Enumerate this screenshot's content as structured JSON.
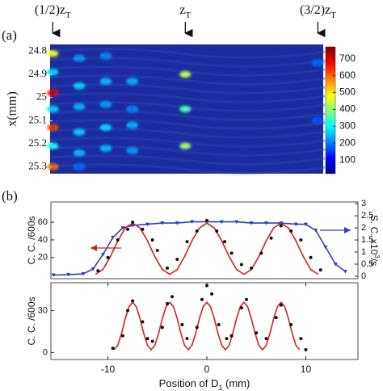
{
  "chart_data": [
    {
      "type": "heatmap",
      "panel_label": "(a)",
      "z_markers": [
        {
          "value": 0.5,
          "text": "(1/2)z",
          "sub": "T"
        },
        {
          "value": 1.0,
          "text": "z",
          "sub": "T"
        },
        {
          "value": 1.5,
          "text": "(3/2)z",
          "sub": "T"
        }
      ],
      "zlim": [
        0.49,
        1.52
      ],
      "y_label": "x(mm)",
      "ylim": [
        24.77,
        25.33
      ],
      "y_inverted": true,
      "yticks": [
        24.8,
        24.9,
        25,
        25.1,
        25.2,
        25.3
      ],
      "colorbar": {
        "lim": [
          20,
          770
        ],
        "ticks": [
          100,
          200,
          300,
          400,
          500,
          600,
          700
        ]
      },
      "background": "#1c2c9e",
      "spots": {
        "z": [
          0.5,
          0.5,
          0.5,
          0.5,
          0.5,
          0.5,
          0.5,
          0.6,
          0.6,
          0.6,
          0.6,
          0.6,
          0.6,
          0.7,
          0.7,
          0.7,
          0.7,
          0.7,
          0.8,
          0.8,
          0.8,
          0.8,
          1.0,
          1.0,
          1.0,
          1.5,
          1.5
        ],
        "x": [
          24.81,
          24.89,
          24.98,
          25.05,
          25.13,
          25.21,
          25.3,
          24.83,
          24.95,
          25.04,
          25.15,
          25.24,
          25.3,
          24.82,
          24.93,
          25.03,
          25.13,
          25.22,
          24.93,
          25.05,
          25.12,
          25.23,
          24.9,
          25.05,
          25.21,
          24.85,
          25.1
        ],
        "counts": [
          500,
          250,
          760,
          250,
          700,
          300,
          650,
          200,
          250,
          220,
          250,
          230,
          150,
          180,
          230,
          200,
          260,
          230,
          220,
          180,
          220,
          200,
          450,
          350,
          420,
          150,
          130
        ]
      }
    },
    {
      "type": "line",
      "panel_label": "(b)",
      "y_label": "C. C. /600s",
      "y2_label": {
        "text": "S. C. x10",
        "sup": "3",
        "tail": "/s"
      },
      "xlim": [
        -15.76,
        15.27
      ],
      "ylim": [
        -4,
        83
      ],
      "yticks": [
        20,
        40,
        60
      ],
      "y2lim": [
        -0.1,
        3.07
      ],
      "y2ticks": [
        0,
        0.5,
        1,
        1.5,
        2,
        2.5,
        3
      ],
      "series": [
        {
          "name": "single counts",
          "type": "line",
          "axis": "y2",
          "color": "#2b3fbf",
          "x": [
            -15.5,
            -14,
            -12.5,
            -11.5,
            -10.5,
            -9.5,
            -8.5,
            -7.5,
            -6,
            -4.5,
            -3,
            -1.5,
            0,
            1.5,
            3,
            4.5,
            6,
            7.5,
            9,
            10,
            11,
            12,
            13,
            14
          ],
          "values": [
            0.05,
            0.07,
            0.1,
            0.3,
            0.9,
            1.6,
            2.0,
            2.1,
            2.15,
            2.2,
            2.2,
            2.25,
            2.25,
            2.25,
            2.25,
            2.2,
            2.2,
            2.2,
            2.15,
            2.15,
            1.9,
            1.2,
            0.5,
            0.2
          ]
        },
        {
          "name": "fit",
          "type": "line",
          "color": "#d42020",
          "x": [
            -11.25,
            -10.5,
            -9.75,
            -9,
            -8.25,
            -7.5,
            -6.75,
            -6,
            -5.25,
            -4.5,
            -3.75,
            -3,
            -2.25,
            -1.5,
            -0.75,
            0,
            0.75,
            1.5,
            2.25,
            3,
            3.75,
            4.5,
            5.25,
            6,
            6.75,
            7.5,
            8.25,
            9,
            9.75,
            10.5,
            11.25
          ],
          "values": [
            1,
            6.5,
            21,
            39,
            53.5,
            59,
            53.5,
            39,
            21,
            6.5,
            1,
            6.5,
            21,
            39,
            53.5,
            59,
            53.5,
            39,
            21,
            6.5,
            1,
            6.5,
            21,
            39,
            53.5,
            59,
            53.5,
            39,
            21,
            6.5,
            1
          ]
        },
        {
          "name": "coincidence counts",
          "type": "scatter",
          "color": "#111111",
          "x": [
            -11,
            -10,
            -9,
            -8,
            -7.5,
            -6.5,
            -5.5,
            -5,
            -4,
            -3,
            -2,
            -1,
            0,
            1,
            1.8,
            2.5,
            3.5,
            4.5,
            5.5,
            6.5,
            7.5,
            8.5,
            9.5,
            10.5,
            11.5
          ],
          "values": [
            5,
            20,
            40,
            52,
            60,
            52,
            40,
            28,
            8,
            18,
            38,
            50,
            62,
            50,
            38,
            25,
            12,
            8,
            25,
            42,
            56,
            50,
            40,
            20,
            6
          ]
        }
      ]
    },
    {
      "type": "line",
      "y_label": "C. C. /600s",
      "x_label": {
        "text": "Position of D",
        "sub": "1",
        "tail": " (mm)"
      },
      "xlim": [
        -15.76,
        15.27
      ],
      "xticks": [
        -10,
        0,
        10
      ],
      "ylim": [
        -5,
        50
      ],
      "yticks": [
        0,
        30
      ],
      "series": [
        {
          "name": "fit",
          "type": "line",
          "color": "#d42020",
          "x": [
            -9.375,
            -9,
            -8.625,
            -8.25,
            -7.875,
            -7.5,
            -7.125,
            -6.75,
            -6.375,
            -6,
            -5.625,
            -5.25,
            -4.875,
            -4.5,
            -4.125,
            -3.75,
            -3.375,
            -3,
            -2.625,
            -2.25,
            -1.875,
            -1.5,
            -1.125,
            -0.75,
            -0.375,
            0,
            0.375,
            0.75,
            1.125,
            1.5,
            1.875,
            2.25,
            2.625,
            3,
            3.375,
            3.75,
            4.125,
            4.5,
            4.875,
            5.25,
            5.625,
            6,
            6.375,
            6.75,
            7.125,
            7.5,
            7.875,
            8.25,
            8.625,
            9,
            9.375
          ],
          "values": [
            2,
            5.2,
            13.7,
            24.3,
            32.8,
            36,
            32.8,
            24.3,
            13.7,
            5.2,
            2,
            5.2,
            13.7,
            24.3,
            32.8,
            36,
            32.8,
            24.3,
            13.7,
            5.2,
            2,
            5.2,
            13.7,
            24.3,
            32.8,
            36,
            32.8,
            24.3,
            13.7,
            5.2,
            2,
            5.2,
            13.7,
            24.3,
            32.8,
            36,
            32.8,
            24.3,
            13.7,
            5.2,
            2,
            5.2,
            13.7,
            24.3,
            32.8,
            36,
            32.8,
            24.3,
            13.7,
            5.2,
            2
          ]
        },
        {
          "name": "coincidence counts",
          "type": "scatter",
          "color": "#111111",
          "x": [
            -9.5,
            -8.5,
            -8,
            -7.5,
            -6.5,
            -6,
            -5.5,
            -4.5,
            -4,
            -3.5,
            -2.5,
            -2,
            -1,
            -0.5,
            0,
            0.5,
            1.2,
            2,
            2.5,
            3.5,
            4,
            5,
            6,
            7,
            7.5,
            8.5,
            9.5,
            10
          ],
          "values": [
            3,
            12,
            30,
            37,
            22,
            10,
            8,
            18,
            35,
            40,
            20,
            10,
            18,
            38,
            48,
            42,
            20,
            10,
            12,
            32,
            38,
            14,
            10,
            25,
            34,
            20,
            10,
            2
          ]
        }
      ]
    }
  ]
}
